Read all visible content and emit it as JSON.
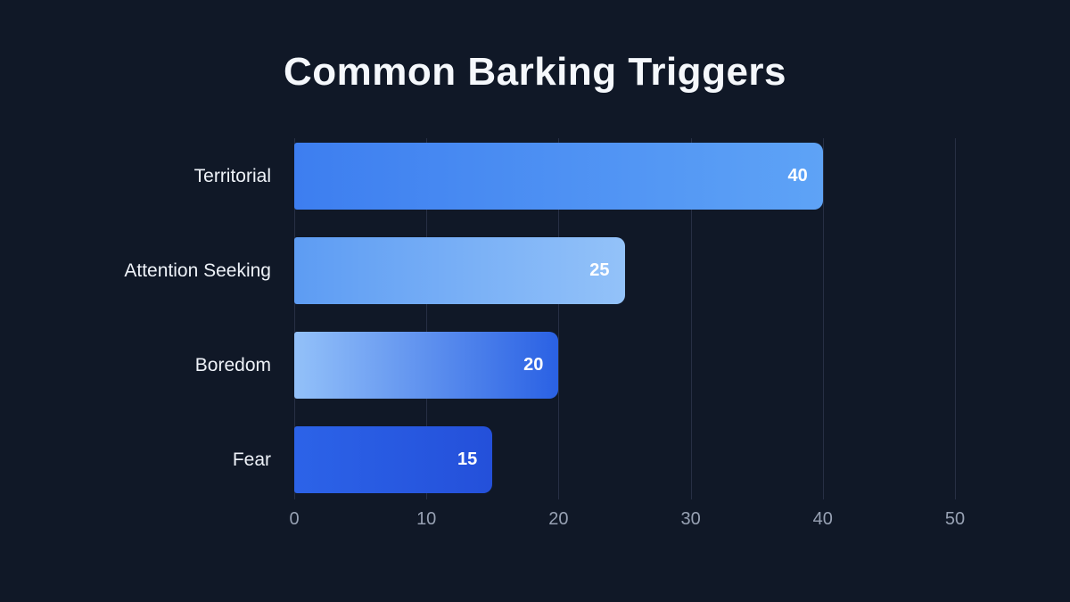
{
  "page": {
    "background_color": "#101827",
    "title_color": "#f5f8fc",
    "label_color": "#eef2f8",
    "tick_color": "#97a1b3",
    "gridline_color": "#272f44",
    "value_label_color": "#ffffff"
  },
  "chart_data": {
    "type": "bar",
    "orientation": "horizontal",
    "title": "Common Barking Triggers",
    "categories": [
      "Territorial",
      "Attention Seeking",
      "Boredom",
      "Fear"
    ],
    "values": [
      40,
      25,
      20,
      15
    ],
    "value_labels": [
      "40",
      "25",
      "20",
      "15"
    ],
    "xlabel": "",
    "ylabel": "",
    "xlim": [
      0,
      50
    ],
    "xticks": [
      "0",
      "10",
      "20",
      "30",
      "40",
      "50"
    ],
    "grid": "vertical gridlines at every x tick, drawn behind bars",
    "legend": "none",
    "bar_gradients": [
      [
        "#3d7ef0",
        "#5ea3f6"
      ],
      [
        "#5d9cf3",
        "#93c2f9"
      ],
      [
        "#93c1f9",
        "#2a61e4"
      ],
      [
        "#2c63e8",
        "#2450da"
      ]
    ]
  }
}
